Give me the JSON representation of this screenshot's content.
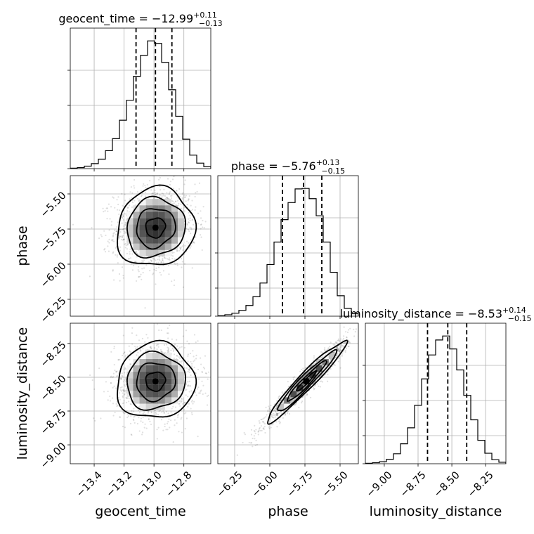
{
  "chart_data": {
    "type": "corner",
    "parameters": [
      {
        "key": "geocent_time",
        "label": "geocent_time",
        "title_prefix": "geocent_time = ",
        "median_text": "−12.99",
        "upper_text": "+0.11",
        "lower_text": "−0.13",
        "median": -12.99,
        "plus": 0.11,
        "minus": 0.13,
        "range": [
          -13.56,
          -12.62
        ],
        "ticks": [
          -13.4,
          -13.2,
          -13.0,
          -12.8
        ],
        "tick_labels": [
          "−13.4",
          "−13.2",
          "−13.0",
          "−12.8"
        ]
      },
      {
        "key": "phase",
        "label": "phase",
        "title_prefix": "phase = ",
        "median_text": "−5.76",
        "upper_text": "+0.13",
        "lower_text": "−0.15",
        "median": -5.76,
        "plus": 0.13,
        "minus": 0.15,
        "range": [
          -6.37,
          -5.37
        ],
        "ticks": [
          -6.25,
          -6.0,
          -5.75,
          -5.5
        ],
        "tick_labels": [
          "−6.25",
          "−6.00",
          "−5.75",
          "−5.50"
        ]
      },
      {
        "key": "luminosity_distance",
        "label": "luminosity_distance",
        "title_prefix": "luminosity_distance = ",
        "median_text": "−8.53",
        "upper_text": "+0.14",
        "lower_text": "−0.15",
        "median": -8.53,
        "plus": 0.14,
        "minus": 0.15,
        "range": [
          -9.14,
          -8.1
        ],
        "ticks": [
          -9.0,
          -8.75,
          -8.5,
          -8.25
        ],
        "tick_labels": [
          "−9.00",
          "−8.75",
          "−8.50",
          "−8.25"
        ]
      }
    ],
    "histograms": {
      "geocent_time": {
        "edges": [
          -13.56,
          -13.513,
          -13.466,
          -13.419,
          -13.372,
          -13.325,
          -13.278,
          -13.231,
          -13.184,
          -13.137,
          -13.09,
          -13.043,
          -12.996,
          -12.949,
          -12.902,
          -12.855,
          -12.808,
          -12.761,
          -12.714,
          -12.667,
          -12.62
        ],
        "counts": [
          1,
          2,
          5,
          10,
          19,
          36,
          60,
          97,
          137,
          185,
          227,
          256,
          251,
          213,
          158,
          105,
          59,
          27,
          11,
          4
        ]
      },
      "phase": {
        "edges": [
          -6.37,
          -6.32,
          -6.27,
          -6.22,
          -6.17,
          -6.12,
          -6.07,
          -6.02,
          -5.97,
          -5.92,
          -5.87,
          -5.82,
          -5.77,
          -5.72,
          -5.67,
          -5.62,
          -5.57,
          -5.52,
          -5.47,
          -5.42,
          -5.37
        ],
        "counts": [
          1,
          3,
          6,
          12,
          22,
          40,
          68,
          106,
          152,
          198,
          233,
          261,
          262,
          241,
          206,
          152,
          90,
          42,
          16,
          5
        ]
      },
      "luminosity_distance": {
        "edges": [
          -9.14,
          -9.088,
          -9.036,
          -8.984,
          -8.932,
          -8.88,
          -8.828,
          -8.776,
          -8.724,
          -8.672,
          -8.62,
          -8.568,
          -8.516,
          -8.464,
          -8.412,
          -8.36,
          -8.308,
          -8.256,
          -8.204,
          -8.152,
          -8.1
        ],
        "counts": [
          1,
          2,
          4,
          9,
          20,
          40,
          72,
          117,
          170,
          218,
          248,
          256,
          230,
          188,
          137,
          88,
          47,
          21,
          8,
          3
        ]
      }
    },
    "pairs": [
      {
        "x": "geocent_time",
        "y": "phase",
        "center": [
          -12.99,
          -5.74
        ],
        "sigma": [
          0.13,
          0.14
        ],
        "corr": 0.08,
        "contour_levels_sigma": [
          0.5,
          1.0,
          1.5,
          2.0
        ]
      },
      {
        "x": "geocent_time",
        "y": "luminosity_distance",
        "center": [
          -12.99,
          -8.53
        ],
        "sigma": [
          0.13,
          0.14
        ],
        "corr": 0.05,
        "contour_levels_sigma": [
          0.5,
          1.0,
          1.5,
          2.0
        ]
      },
      {
        "x": "phase",
        "y": "luminosity_distance",
        "center": [
          -5.74,
          -8.53
        ],
        "sigma": [
          0.14,
          0.15
        ],
        "corr": 0.96,
        "contour_levels_sigma": [
          0.5,
          1.0,
          1.5,
          2.0
        ]
      }
    ],
    "grid": true
  }
}
